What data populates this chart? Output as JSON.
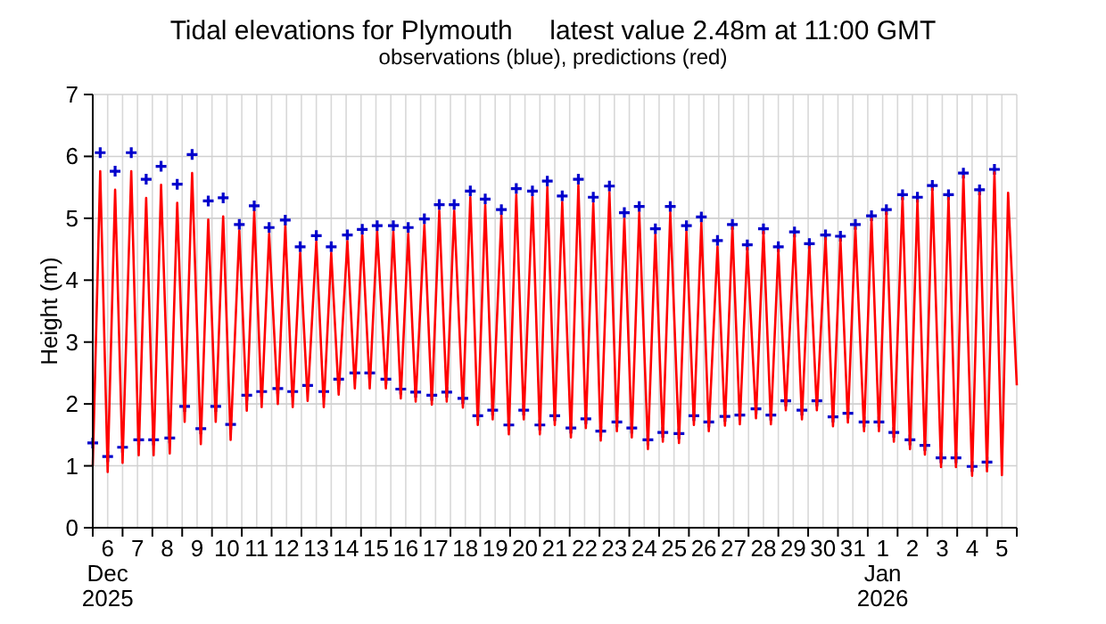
{
  "chart_data": {
    "type": "line",
    "title": "Tidal elevations for Plymouth     latest value 2.48m at 11:00 GMT",
    "subtitle": "observations (blue), predictions (red)",
    "ylabel": "Height (m)",
    "xlim": [
      "2025-12-06",
      "2026-01-06"
    ],
    "ylim": [
      0,
      7
    ],
    "yticks": [
      0,
      1,
      2,
      3,
      4,
      5,
      6,
      7
    ],
    "grid": true,
    "xticks": [
      {
        "value": "2025-12-06",
        "label": null
      },
      {
        "value": "2025-12-06T12:00",
        "label": "6\nDec\n2025"
      },
      {
        "value": "2025-12-07",
        "label": null
      },
      {
        "value": "2025-12-07T12:00",
        "label": "7"
      },
      {
        "value": "2025-12-08",
        "label": null
      },
      {
        "value": "2025-12-08T12:00",
        "label": "8"
      },
      {
        "value": "2025-12-09",
        "label": null
      },
      {
        "value": "2025-12-09T12:00",
        "label": "9"
      },
      {
        "value": "2025-12-10",
        "label": null
      },
      {
        "value": "2025-12-10T12:00",
        "label": "10"
      },
      {
        "value": "2025-12-11",
        "label": null
      },
      {
        "value": "2025-12-11T12:00",
        "label": "11"
      },
      {
        "value": "2025-12-12",
        "label": null
      },
      {
        "value": "2025-12-12T12:00",
        "label": "12"
      },
      {
        "value": "2025-12-13",
        "label": null
      },
      {
        "value": "2025-12-13T12:00",
        "label": "13"
      },
      {
        "value": "2025-12-14",
        "label": null
      },
      {
        "value": "2025-12-14T12:00",
        "label": "14"
      },
      {
        "value": "2025-12-15",
        "label": null
      },
      {
        "value": "2025-12-15T12:00",
        "label": "15"
      },
      {
        "value": "2025-12-16",
        "label": null
      },
      {
        "value": "2025-12-16T12:00",
        "label": "16"
      },
      {
        "value": "2025-12-17",
        "label": null
      },
      {
        "value": "2025-12-17T12:00",
        "label": "17"
      },
      {
        "value": "2025-12-18",
        "label": null
      },
      {
        "value": "2025-12-18T12:00",
        "label": "18"
      },
      {
        "value": "2025-12-19",
        "label": null
      },
      {
        "value": "2025-12-19T12:00",
        "label": "19"
      },
      {
        "value": "2025-12-20",
        "label": null
      },
      {
        "value": "2025-12-20T12:00",
        "label": "20"
      },
      {
        "value": "2025-12-21",
        "label": null
      },
      {
        "value": "2025-12-21T12:00",
        "label": "21"
      },
      {
        "value": "2025-12-22",
        "label": null
      },
      {
        "value": "2025-12-22T12:00",
        "label": "22"
      },
      {
        "value": "2025-12-23",
        "label": null
      },
      {
        "value": "2025-12-23T12:00",
        "label": "23"
      },
      {
        "value": "2025-12-24",
        "label": null
      },
      {
        "value": "2025-12-24T12:00",
        "label": "24"
      },
      {
        "value": "2025-12-25",
        "label": null
      },
      {
        "value": "2025-12-25T12:00",
        "label": "25"
      },
      {
        "value": "2025-12-26",
        "label": null
      },
      {
        "value": "2025-12-26T12:00",
        "label": "26"
      },
      {
        "value": "2025-12-27",
        "label": null
      },
      {
        "value": "2025-12-27T12:00",
        "label": "27"
      },
      {
        "value": "2025-12-28",
        "label": null
      },
      {
        "value": "2025-12-28T12:00",
        "label": "28"
      },
      {
        "value": "2025-12-29",
        "label": null
      },
      {
        "value": "2025-12-29T12:00",
        "label": "29"
      },
      {
        "value": "2025-12-30",
        "label": null
      },
      {
        "value": "2025-12-30T12:00",
        "label": "30"
      },
      {
        "value": "2025-12-31",
        "label": null
      },
      {
        "value": "2025-12-31T12:00",
        "label": "31"
      },
      {
        "value": "2026-01-01",
        "label": null
      },
      {
        "value": "2026-01-01T12:00",
        "label": "1\nJan\n2026"
      },
      {
        "value": "2026-01-02",
        "label": null
      },
      {
        "value": "2026-01-02T12:00",
        "label": "2"
      },
      {
        "value": "2026-01-03",
        "label": null
      },
      {
        "value": "2026-01-03T12:00",
        "label": "3"
      },
      {
        "value": "2026-01-04",
        "label": null
      },
      {
        "value": "2026-01-04T12:00",
        "label": "4"
      },
      {
        "value": "2026-01-05",
        "label": null
      },
      {
        "value": "2026-01-05T12:00",
        "label": "5"
      },
      {
        "value": "2026-01-06",
        "label": null
      }
    ],
    "x": [
      "2025-12-06T00:00",
      "2025-12-06T06:00",
      "2025-12-06T12:00",
      "2025-12-06T18:00",
      "2025-12-07T00:00",
      "2025-12-07T07:00",
      "2025-12-07T13:00",
      "2025-12-07T19:00",
      "2025-12-08T01:00",
      "2025-12-08T07:00",
      "2025-12-08T14:00",
      "2025-12-08T20:00",
      "2025-12-09T02:00",
      "2025-12-09T08:00",
      "2025-12-09T15:00",
      "2025-12-09T21:00",
      "2025-12-10T03:00",
      "2025-12-10T09:00",
      "2025-12-10T15:00",
      "2025-12-10T22:00",
      "2025-12-11T04:00",
      "2025-12-11T10:00",
      "2025-12-11T16:00",
      "2025-12-11T22:00",
      "2025-12-12T05:00",
      "2025-12-12T11:00",
      "2025-12-12T17:00",
      "2025-12-12T23:00",
      "2025-12-13T05:00",
      "2025-12-13T12:00",
      "2025-12-13T18:00",
      "2025-12-14T00:00",
      "2025-12-14T06:00",
      "2025-12-14T13:00",
      "2025-12-14T19:00",
      "2025-12-15T01:00",
      "2025-12-15T07:00",
      "2025-12-15T13:00",
      "2025-12-15T20:00",
      "2025-12-16T02:00",
      "2025-12-16T08:00",
      "2025-12-16T14:00",
      "2025-12-16T20:00",
      "2025-12-17T03:00",
      "2025-12-17T09:00",
      "2025-12-17T15:00",
      "2025-12-17T21:00",
      "2025-12-18T03:00",
      "2025-12-18T10:00",
      "2025-12-18T16:00",
      "2025-12-18T22:00",
      "2025-12-19T04:00",
      "2025-12-19T10:00",
      "2025-12-19T17:00",
      "2025-12-19T23:00",
      "2025-12-20T05:00",
      "2025-12-20T11:00",
      "2025-12-20T18:00",
      "2025-12-21T00:00",
      "2025-12-21T06:00",
      "2025-12-21T12:00",
      "2025-12-21T18:00",
      "2025-12-22T01:00",
      "2025-12-22T07:00",
      "2025-12-22T13:00",
      "2025-12-22T19:00",
      "2025-12-23T01:00",
      "2025-12-23T08:00",
      "2025-12-23T14:00",
      "2025-12-23T20:00",
      "2025-12-24T02:00",
      "2025-12-24T08:00",
      "2025-12-24T15:00",
      "2025-12-24T21:00",
      "2025-12-25T03:00",
      "2025-12-25T09:00",
      "2025-12-25T16:00",
      "2025-12-25T22:00",
      "2025-12-26T04:00",
      "2025-12-26T10:00",
      "2025-12-26T16:00",
      "2025-12-26T23:00",
      "2025-12-27T05:00",
      "2025-12-27T11:00",
      "2025-12-27T17:00",
      "2025-12-27T23:00",
      "2025-12-28T06:00",
      "2025-12-28T12:00",
      "2025-12-28T18:00",
      "2025-12-29T00:00",
      "2025-12-29T06:00",
      "2025-12-29T13:00",
      "2025-12-29T19:00",
      "2025-12-30T01:00",
      "2025-12-30T07:00",
      "2025-12-30T14:00",
      "2025-12-30T20:00",
      "2025-12-31T02:00",
      "2025-12-31T08:00",
      "2025-12-31T14:00",
      "2025-12-31T21:00",
      "2026-01-01T03:00",
      "2026-01-01T09:00",
      "2026-01-01T15:00",
      "2026-01-01T21:00",
      "2026-01-02T04:00",
      "2026-01-02T10:00",
      "2026-01-02T16:00",
      "2026-01-02T22:00",
      "2026-01-03T04:00",
      "2026-01-03T11:00",
      "2026-01-03T17:00",
      "2026-01-03T23:00",
      "2026-01-04T05:00",
      "2026-01-04T12:00",
      "2026-01-04T18:00",
      "2026-01-05T00:00",
      "2026-01-05T06:00",
      "2026-01-05T12:00",
      "2026-01-05T17:00",
      "2026-01-06T00:00"
    ],
    "series": [
      {
        "type": "scatter",
        "marker": "cross",
        "color": "#0000cc",
        "values": [
          1.37,
          6.06,
          1.15,
          5.76,
          1.3,
          6.06,
          1.42,
          5.63,
          1.42,
          5.84,
          1.45,
          5.55,
          1.96,
          6.03,
          1.6,
          5.28,
          1.96,
          5.33,
          1.67,
          4.9,
          2.14,
          5.2,
          2.2,
          4.85,
          2.25,
          4.97,
          2.2,
          4.54,
          2.3,
          4.72,
          2.2,
          4.54,
          2.4,
          4.73,
          2.5,
          4.82,
          2.5,
          4.88,
          2.4,
          4.88,
          2.24,
          4.85,
          2.19,
          4.99,
          2.14,
          5.22,
          2.19,
          5.22,
          2.09,
          5.44,
          1.81,
          5.31,
          1.9,
          5.14,
          1.66,
          5.48,
          1.9,
          5.44,
          1.66,
          5.6,
          1.81,
          5.36,
          1.61,
          5.63,
          1.76,
          5.34,
          1.56,
          5.52,
          1.71,
          5.09,
          1.61,
          5.19,
          1.42,
          4.83,
          1.54,
          5.19,
          1.52,
          4.88,
          1.81,
          5.02,
          1.71,
          4.64,
          1.8,
          4.9,
          1.82,
          4.57,
          1.92,
          4.83,
          1.82,
          4.54,
          2.05,
          4.78,
          1.9,
          4.59,
          2.05,
          4.73,
          1.79,
          4.71,
          1.85,
          4.9,
          1.71,
          5.04,
          1.71,
          5.14,
          1.54,
          5.38,
          1.42,
          5.34,
          1.33,
          5.53,
          1.13,
          5.38,
          1.13,
          5.73,
          0.99,
          5.46,
          1.06,
          5.79,
          null,
          null,
          null
        ]
      },
      {
        "color": "#ff0000",
        "values": [
          1.0,
          5.76,
          0.9,
          5.46,
          1.05,
          5.76,
          1.17,
          5.33,
          1.17,
          5.54,
          1.2,
          5.25,
          1.71,
          5.73,
          1.35,
          4.98,
          1.71,
          5.03,
          1.42,
          4.8,
          1.89,
          5.1,
          1.95,
          4.75,
          2.0,
          4.87,
          1.95,
          4.44,
          2.05,
          4.62,
          1.95,
          4.44,
          2.15,
          4.63,
          2.25,
          4.72,
          2.25,
          4.78,
          2.25,
          4.78,
          2.09,
          4.75,
          2.04,
          4.89,
          1.99,
          5.12,
          2.04,
          5.12,
          1.94,
          5.34,
          1.66,
          5.21,
          1.75,
          5.04,
          1.51,
          5.38,
          1.75,
          5.34,
          1.51,
          5.5,
          1.66,
          5.26,
          1.46,
          5.53,
          1.61,
          5.24,
          1.41,
          5.42,
          1.56,
          4.99,
          1.46,
          5.09,
          1.27,
          4.73,
          1.39,
          5.09,
          1.37,
          4.78,
          1.66,
          4.92,
          1.56,
          4.54,
          1.65,
          4.85,
          1.67,
          4.52,
          1.77,
          4.78,
          1.67,
          4.49,
          1.9,
          4.73,
          1.75,
          4.54,
          1.9,
          4.68,
          1.64,
          4.66,
          1.7,
          4.85,
          1.56,
          4.99,
          1.56,
          5.09,
          1.39,
          5.33,
          1.27,
          5.29,
          1.18,
          5.48,
          0.98,
          5.33,
          0.98,
          5.68,
          0.84,
          5.41,
          0.91,
          5.74,
          0.85,
          5.41,
          2.3
        ]
      }
    ]
  }
}
